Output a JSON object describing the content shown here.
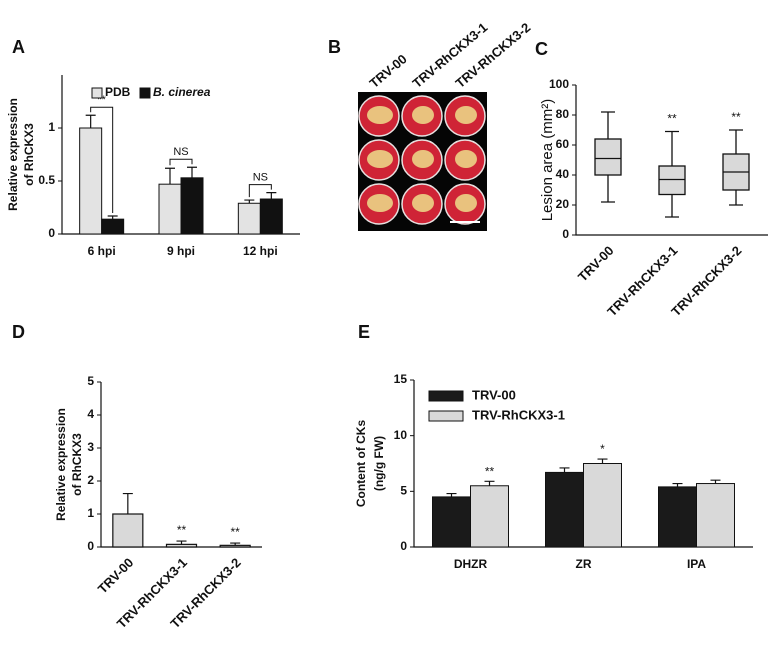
{
  "chart_data": [
    {
      "type": "bar",
      "panel": "A",
      "ylabel": [
        "Relative expression",
        "of RhCKX3"
      ],
      "categories": [
        "6 hpi",
        "9 hpi",
        "12 hpi"
      ],
      "series": [
        {
          "name": "PDB",
          "color": "#e3e3e3",
          "values": [
            1.0,
            0.47,
            0.29
          ],
          "errors": [
            0.12,
            0.15,
            0.03
          ]
        },
        {
          "name": "B. cinerea",
          "color": "#111111",
          "values": [
            0.14,
            0.53,
            0.33
          ],
          "errors": [
            0.03,
            0.1,
            0.06
          ]
        }
      ],
      "annotations": [
        "**",
        "NS",
        "NS"
      ],
      "ylim": [
        0,
        1.5
      ],
      "yticks": [
        0,
        0.5,
        1
      ]
    },
    {
      "type": "image",
      "panel": "B",
      "labels": [
        "TRV-00",
        "TRV-RhCKX3-1",
        "TRV-RhCKX3-2"
      ]
    },
    {
      "type": "box",
      "panel": "C",
      "ylabel": "Lesion area (mm²)",
      "categories": [
        "TRV-00",
        "TRV-RhCKX3-1",
        "TRV-RhCKX3-2"
      ],
      "min": [
        22,
        12,
        20
      ],
      "q1": [
        40,
        27,
        30
      ],
      "median": [
        51,
        37,
        42
      ],
      "q3": [
        64,
        46,
        54
      ],
      "max": [
        82,
        69,
        70
      ],
      "color": "#d9d9d9",
      "annotations": [
        null,
        "**",
        "**"
      ],
      "ylim": [
        0,
        100
      ],
      "yticks": [
        0,
        20,
        40,
        60,
        80,
        100
      ]
    },
    {
      "type": "bar",
      "panel": "D",
      "ylabel": [
        "Relative expression",
        "of RhCKX3"
      ],
      "categories": [
        "TRV-00",
        "TRV-RhCKX3-1",
        "TRV-RhCKX3-2"
      ],
      "values": [
        1.0,
        0.08,
        0.05
      ],
      "errors": [
        0.62,
        0.1,
        0.07
      ],
      "color": "#d9d9d9",
      "annotations": [
        null,
        "**",
        "**"
      ],
      "ylim": [
        0,
        5
      ],
      "yticks": [
        0,
        1,
        2,
        3,
        4,
        5
      ]
    },
    {
      "type": "bar",
      "panel": "E",
      "ylabel": [
        "Content of CKs",
        "(ng/g FW)"
      ],
      "categories": [
        "DHZR",
        "ZR",
        "IPA"
      ],
      "series": [
        {
          "name": "TRV-00",
          "color": "#1a1a1a",
          "values": [
            4.5,
            6.7,
            5.4
          ],
          "errors": [
            0.3,
            0.4,
            0.3
          ]
        },
        {
          "name": "TRV-RhCKX3-1",
          "color": "#d9d9d9",
          "values": [
            5.5,
            7.5,
            5.7
          ],
          "errors": [
            0.4,
            0.4,
            0.3
          ],
          "annotations": [
            "**",
            "*",
            null
          ]
        }
      ],
      "ylim": [
        0,
        15
      ],
      "yticks": [
        0,
        5,
        10,
        15
      ]
    }
  ]
}
